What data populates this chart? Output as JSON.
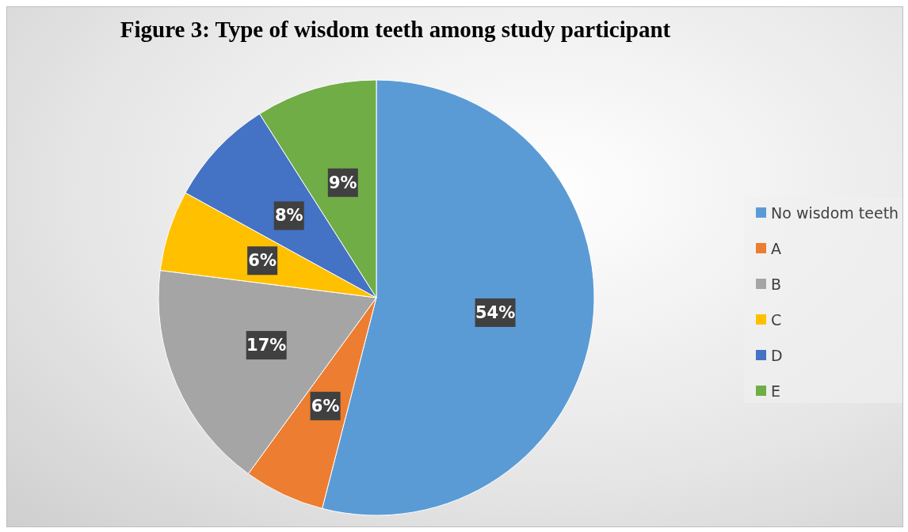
{
  "chart_data": {
    "type": "pie",
    "title": "Figure 3: Type of wisdom teeth among study participant",
    "categories": [
      "No wisdom teeth",
      "A",
      "B",
      "C",
      "D",
      "E"
    ],
    "values": [
      54,
      6,
      17,
      6,
      8,
      9
    ],
    "value_labels": [
      "54%",
      "6%",
      "17%",
      "6%",
      "8%",
      "9%"
    ],
    "colors": [
      "#5b9bd5",
      "#ed7d31",
      "#a5a5a5",
      "#ffc000",
      "#4472c4",
      "#70ad47"
    ],
    "legend": "right"
  }
}
